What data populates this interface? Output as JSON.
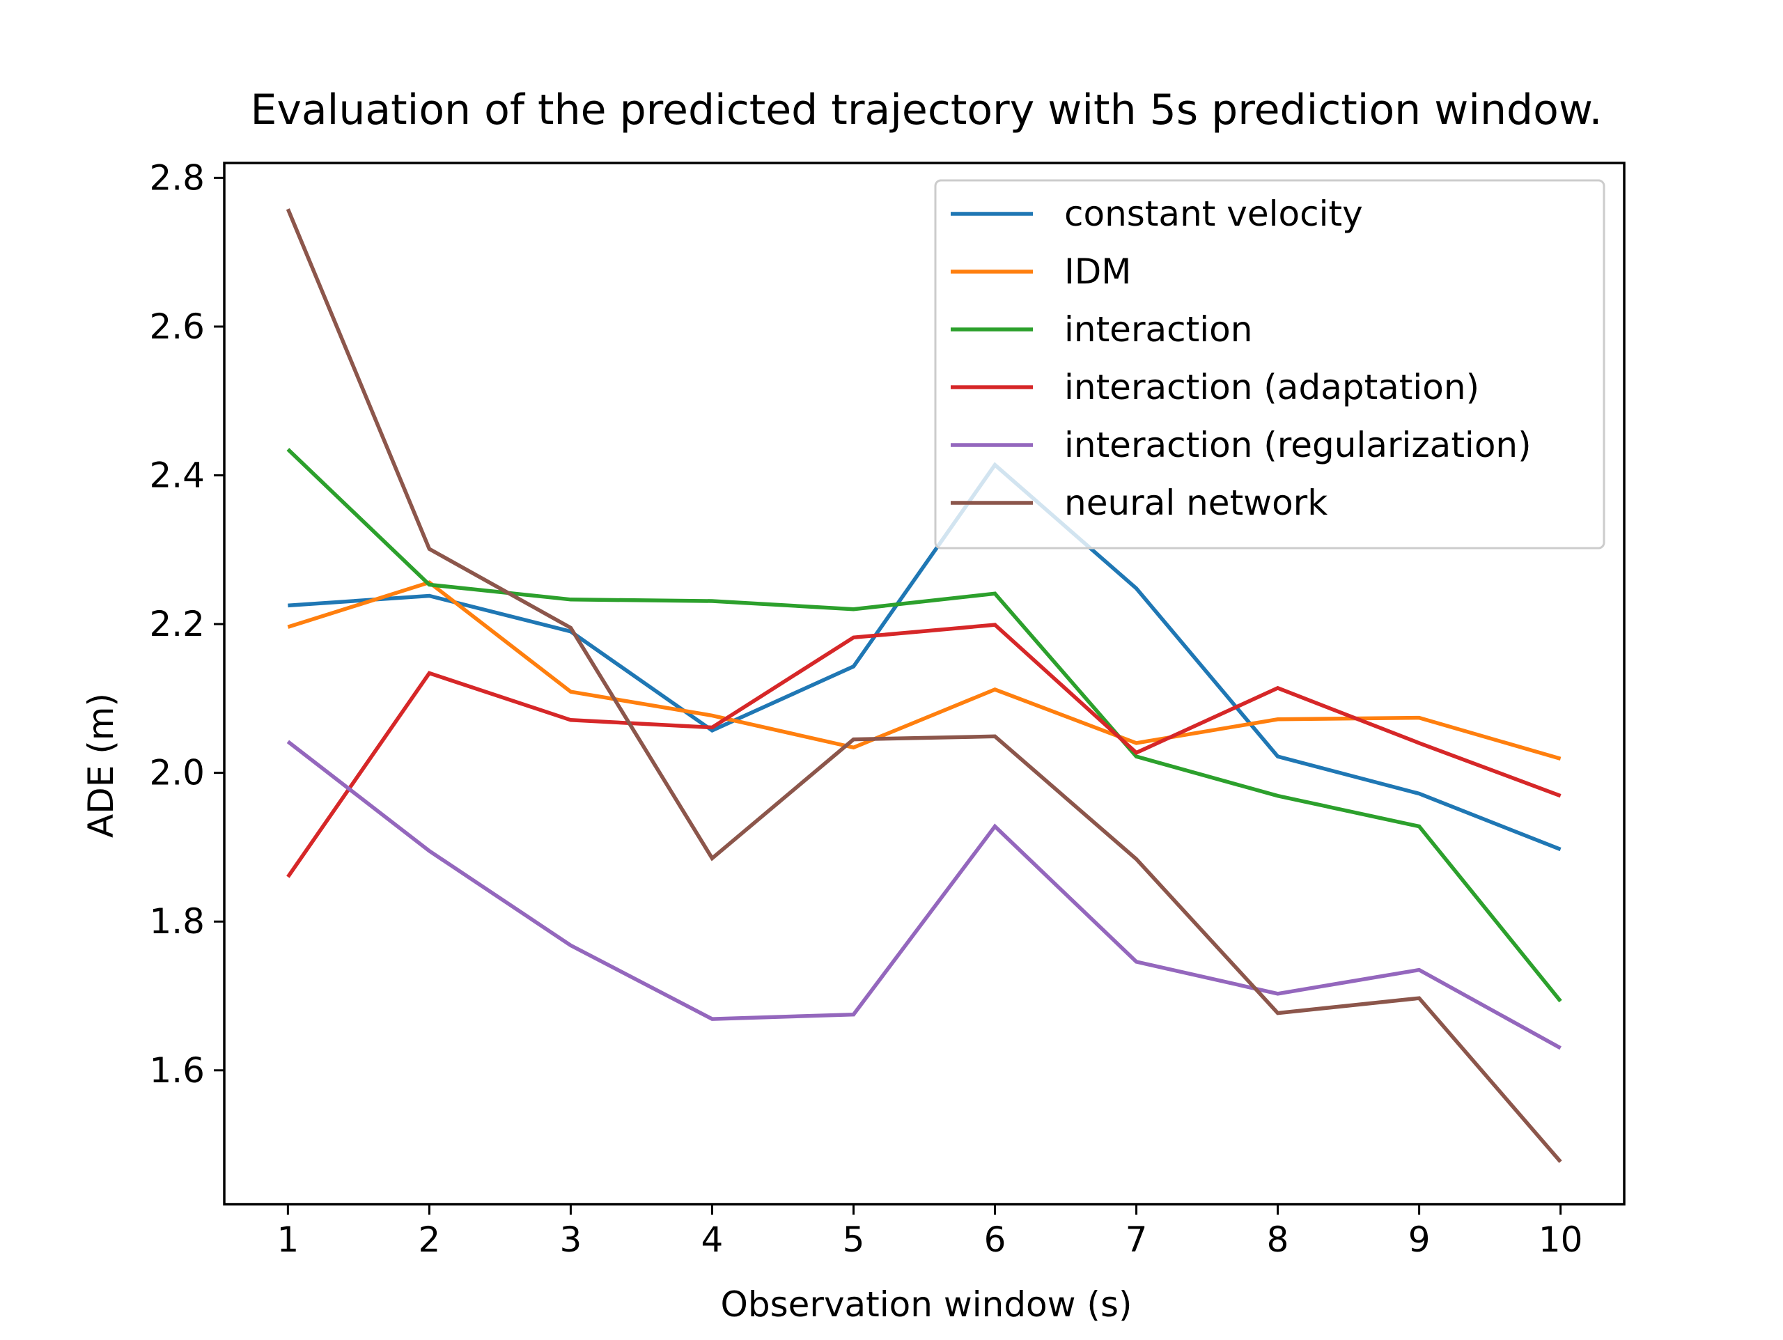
{
  "chart_data": {
    "type": "line",
    "title": "Evaluation of the predicted trajectory with 5s prediction window.",
    "xlabel": "Observation window (s)",
    "ylabel": "ADE (m)",
    "x": [
      1,
      2,
      3,
      4,
      5,
      6,
      7,
      8,
      9,
      10
    ],
    "xticks": [
      "1",
      "2",
      "3",
      "4",
      "5",
      "6",
      "7",
      "8",
      "9",
      "10"
    ],
    "yticks": [
      "1.6",
      "1.8",
      "2.0",
      "2.2",
      "2.4",
      "2.6",
      "2.8"
    ],
    "ytick_values": [
      1.6,
      1.8,
      2.0,
      2.2,
      2.4,
      2.6,
      2.8
    ],
    "xlim": [
      0.55,
      10.45
    ],
    "ylim": [
      1.42,
      2.82
    ],
    "grid": false,
    "legend_position": "top-right",
    "series": [
      {
        "name": "constant velocity",
        "color": "#1f77b4",
        "values": [
          2.225,
          2.238,
          2.19,
          2.057,
          2.143,
          2.414,
          2.248,
          2.022,
          1.972,
          1.897
        ]
      },
      {
        "name": "IDM",
        "color": "#ff7f0e",
        "values": [
          2.196,
          2.256,
          2.109,
          2.077,
          2.034,
          2.112,
          2.04,
          2.072,
          2.074,
          2.019
        ]
      },
      {
        "name": "interaction",
        "color": "#2ca02c",
        "values": [
          2.435,
          2.253,
          2.233,
          2.231,
          2.22,
          2.241,
          2.022,
          1.969,
          1.928,
          1.693
        ]
      },
      {
        "name": "interaction (adaptation)",
        "color": "#d62728",
        "values": [
          1.86,
          2.134,
          2.071,
          2.061,
          2.182,
          2.199,
          2.027,
          2.114,
          2.04,
          1.969
        ]
      },
      {
        "name": "interaction (regularization)",
        "color": "#9467bd",
        "values": [
          2.042,
          1.895,
          1.768,
          1.669,
          1.675,
          1.928,
          1.746,
          1.703,
          1.735,
          1.63
        ]
      },
      {
        "name": "neural network",
        "color": "#8c564b",
        "values": [
          2.758,
          2.301,
          2.195,
          1.885,
          2.045,
          2.049,
          1.884,
          1.677,
          1.697,
          1.477
        ]
      }
    ]
  }
}
